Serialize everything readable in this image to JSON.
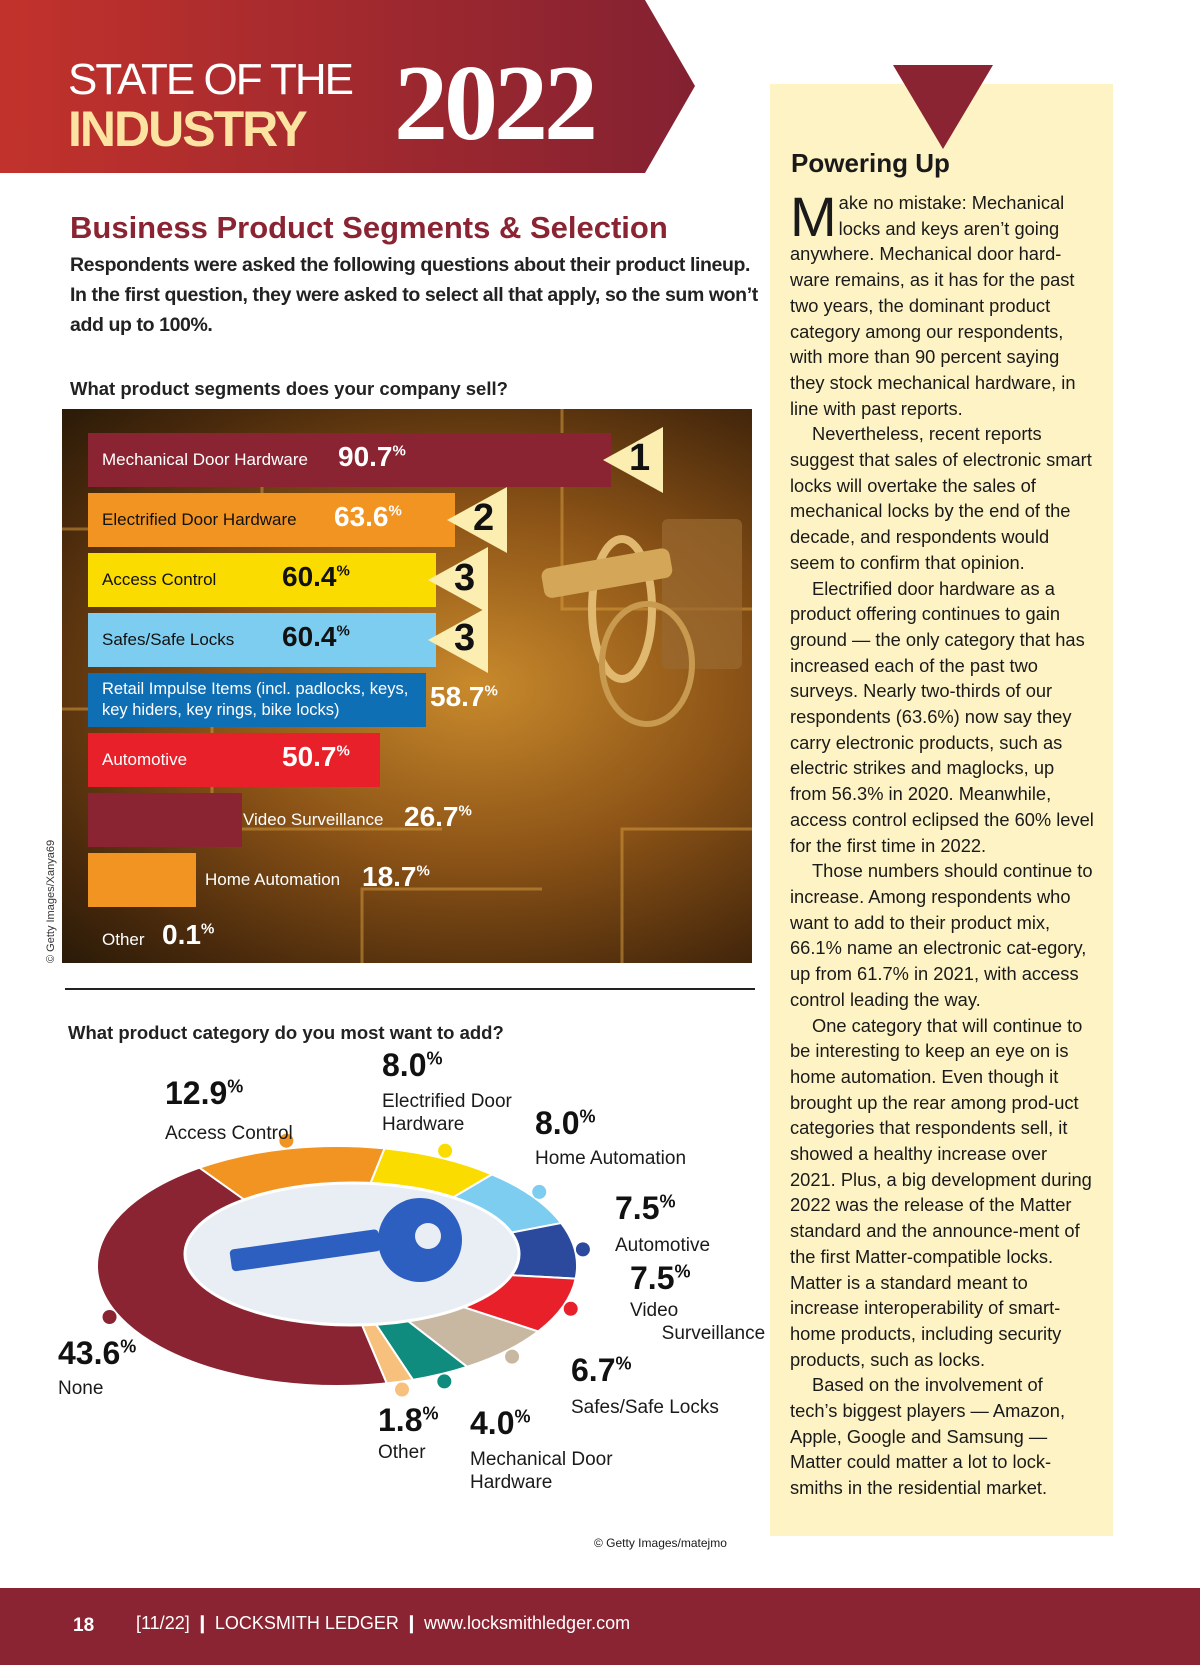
{
  "banner": {
    "line1": "STATE OF THE",
    "line2": "INDUSTRY",
    "year": "2022"
  },
  "section": {
    "title": "Business Product Segments & Selection",
    "intro": "Respondents were asked the following questions about their product lineup. In the first question, they were asked to select all that apply, so the sum won’t add up to 100%."
  },
  "colors": {
    "maroon": "#8a2432",
    "orange": "#f29422",
    "yellow": "#fbdc00",
    "lightblue": "#7dcdf0",
    "blue": "#0f6fb5",
    "red": "#e8202a",
    "navy": "#2b4a9e",
    "tan": "#c8b8a2",
    "teal": "#0f8c7e",
    "peach": "#f7c07c",
    "sidebar": "#fef3c4"
  },
  "chart_data": [
    {
      "type": "bar",
      "orientation": "horizontal",
      "title": "What product segments does your company sell?",
      "unit": "%",
      "categories": [
        "Mechanical Door Hardware",
        "Electrified Door Hardware",
        "Access Control",
        "Safes/Safe Locks",
        "Retail Impulse Items (incl. padlocks, keys, key hiders, key rings, bike locks)",
        "Automotive",
        "Video Surveillance",
        "Home Automation",
        "Other"
      ],
      "values": [
        90.7,
        63.6,
        60.4,
        60.4,
        58.7,
        50.7,
        26.7,
        18.7,
        0.1
      ],
      "labels": [
        "90.7",
        "63.6",
        "60.4",
        "60.4",
        "58.7",
        "50.7",
        "26.7",
        "18.7",
        "0.1"
      ],
      "ranks": [
        "1",
        "2",
        "3",
        "3"
      ],
      "credit": "© Getty Images/Xanya69"
    },
    {
      "type": "pie",
      "title": "What product category do you most want to add?",
      "unit": "%",
      "categories": [
        "Access Control",
        "Electrified Door Hardware",
        "Home Automation",
        "Automotive",
        "Video Surveillance",
        "Safes/Safe Locks",
        "Mechanical Door Hardware",
        "Other",
        "None"
      ],
      "values": [
        12.9,
        8.0,
        8.0,
        7.5,
        7.5,
        6.7,
        4.0,
        1.8,
        43.6
      ],
      "labels": [
        "12.9",
        "8.0",
        "8.0",
        "7.5",
        "7.5",
        "6.7",
        "4.0",
        "1.8",
        "43.6"
      ],
      "colors": [
        "#f29422",
        "#fbdc00",
        "#7dcdf0",
        "#2b4a9e",
        "#e8202a",
        "#c8b8a2",
        "#0f8c7e",
        "#f7c07c",
        "#8a2432"
      ],
      "credit": "© Getty Images/matejmo"
    }
  ],
  "pct": "%",
  "sidebar": {
    "title": "Powering Up",
    "dropcap": "M",
    "paragraphs": [
      "ake no mistake: Mechanical locks and keys aren’t going anywhere. Mechanical door hard-ware remains, as it has for the past two years, the dominant product category among our respondents, with more than 90 percent saying they stock mechanical hardware, in line with past reports.",
      "Nevertheless, recent reports suggest that sales of electronic smart locks will overtake the sales of mechanical locks by the end of the decade, and respondents would seem to confirm that opinion.",
      "Electrified door hardware as a product offering continues to gain ground — the only category that has increased each of the past two surveys. Nearly two-thirds of our respondents (63.6%) now say they carry electronic products, such as electric strikes and maglocks, up from 56.3% in 2020. Meanwhile, access control eclipsed the 60% level for the first time in 2022.",
      "Those numbers should continue to increase. Among respondents who want to add to their product mix, 66.1% name an electronic cat-egory, up from 61.7% in 2021, with access control leading the way.",
      "One category that will continue to be interesting to keep an eye on is home automation. Even though it brought up the rear among prod-uct categories that respondents sell, it showed a healthy increase over 2021. Plus, a big development during 2022 was the release of the Matter standard and the announce-ment of the first Matter-compatible locks. Matter is a standard meant to increase interoperability of smart-home products, including security products, such as locks.",
      "Based on the involvement of tech’s biggest players — Amazon, Apple, Google and Samsung — Matter could matter a lot to lock-smiths in the residential market."
    ]
  },
  "footer": {
    "page": "18",
    "issue": "[11/22]",
    "sep": "❙",
    "publication": "LOCKSMITH LEDGER",
    "url": "www.locksmithledger.com"
  }
}
